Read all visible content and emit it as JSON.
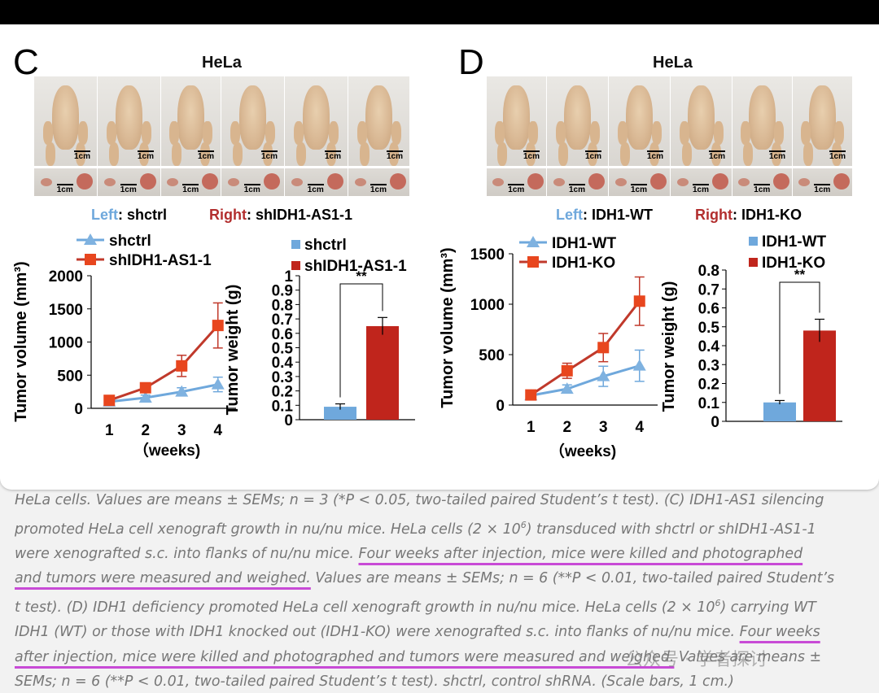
{
  "panel_c": {
    "letter": "C",
    "title": "HeLa",
    "scale_label": "1cm",
    "legend_left_word": "Left",
    "legend_left_value": ": shctrl",
    "legend_right_word": "Right",
    "legend_right_value": ": shIDH1-AS1-1"
  },
  "panel_d": {
    "letter": "D",
    "title": "HeLa",
    "scale_label": "1cm",
    "legend_left_word": "Left",
    "legend_left_value": ": IDH1-WT",
    "legend_right_word": "Right",
    "legend_right_value": ": IDH1-KO"
  },
  "colors": {
    "blue": "#6fa8dc",
    "red": "#c0251c",
    "line_red": "#c0392b",
    "marker_red": "#e8461e",
    "underline": "#c84bd6"
  },
  "chart_data": [
    {
      "id": "c-volume",
      "type": "line",
      "x": [
        1,
        2,
        3,
        4
      ],
      "xlabel": "（weeks)",
      "ylabel": "Tumor  volume (mm³)",
      "ylim": [
        0,
        2000
      ],
      "yticks": [
        0,
        500,
        1000,
        1500,
        2000
      ],
      "series": [
        {
          "name": "shctrl",
          "values": [
            100,
            160,
            250,
            360
          ],
          "errors": [
            30,
            40,
            60,
            110
          ],
          "color": "#6fa8dc",
          "marker": "triangle"
        },
        {
          "name": "shIDH1-AS1-1",
          "values": [
            120,
            310,
            640,
            1250
          ],
          "errors": [
            40,
            60,
            160,
            340
          ],
          "color": "#c0392b",
          "marker": "square"
        }
      ]
    },
    {
      "id": "c-weight",
      "type": "bar",
      "categories": [
        "shctrl",
        "shIDH1-AS1-1"
      ],
      "values": [
        0.09,
        0.65
      ],
      "errors": [
        0.02,
        0.06
      ],
      "colors": [
        "#6fa8dc",
        "#c0251c"
      ],
      "ylabel": "Tumor weight (g)",
      "ylim": [
        0,
        1
      ],
      "yticks": [
        0,
        0.1,
        0.2,
        0.3,
        0.4,
        0.5,
        0.6,
        0.7,
        0.8,
        0.9,
        1
      ],
      "significance": "**"
    },
    {
      "id": "d-volume",
      "type": "line",
      "x": [
        1,
        2,
        3,
        4
      ],
      "xlabel": "（weeks)",
      "ylabel": "Tumor  volume (mm³)",
      "ylim": [
        0,
        1500
      ],
      "yticks": [
        0,
        500,
        1000,
        1500
      ],
      "series": [
        {
          "name": "IDH1-WT",
          "values": [
            95,
            160,
            285,
            390
          ],
          "errors": [
            20,
            40,
            100,
            155
          ],
          "color": "#6fa8dc",
          "marker": "triangle"
        },
        {
          "name": "IDH1-KO",
          "values": [
            100,
            340,
            570,
            1030
          ],
          "errors": [
            25,
            75,
            140,
            240
          ],
          "color": "#c0392b",
          "marker": "square"
        }
      ]
    },
    {
      "id": "d-weight",
      "type": "bar",
      "categories": [
        "IDH1-WT",
        "IDH1-KO"
      ],
      "values": [
        0.1,
        0.48
      ],
      "errors": [
        0.01,
        0.06
      ],
      "colors": [
        "#6fa8dc",
        "#c0251c"
      ],
      "ylabel": "Tumor weight (g)",
      "ylim": [
        0,
        0.8
      ],
      "yticks": [
        0,
        0.1,
        0.2,
        0.3,
        0.4,
        0.5,
        0.6,
        0.7,
        0.8
      ],
      "significance": "**"
    }
  ],
  "caption": {
    "l1": "HeLa cells. Values are means ± SEMs; n = 3 (*P < 0.05, two-tailed paired Student’s t test). (C) IDH1-AS1 silencing",
    "l2a": "promoted HeLa cell xenograft growth in nu/nu mice. HeLa cells (2 × 10",
    "l2sup": "6",
    "l2b": ") transduced with shctrl or shIDH1-AS1-1",
    "l3a": "were xenografted s.c. into flanks of nu/nu mice. ",
    "l3hl": "Four weeks after injection, mice were killed and photographed",
    "l4hl": "and tumors were measured and weighed.",
    "l4b": " Values are means ± SEMs; n = 6 (**P < 0.01, two-tailed paired Student’s",
    "l5a": "t test). (D) IDH1 deficiency promoted HeLa cell xenograft growth in nu/nu mice. HeLa cells (2 × 10",
    "l5sup": "6",
    "l5b": ") carrying WT",
    "l6a": "IDH1 (WT) or those with IDH1 knocked out (IDH1-KO) were xenografted s.c. into flanks of nu/nu mice. ",
    "l6hl": "Four weeks",
    "l7hl": "after injection, mice were killed and photographed and tumors were measured and weighed.",
    "l7b": " Values are means ±",
    "l8": "SEMs; n = 6 (**P < 0.01, two-tailed paired Student’s t test). shctrl, control shRNA. (Scale bars, 1 cm.)"
  },
  "watermark": "公众号 · 学者探讨"
}
